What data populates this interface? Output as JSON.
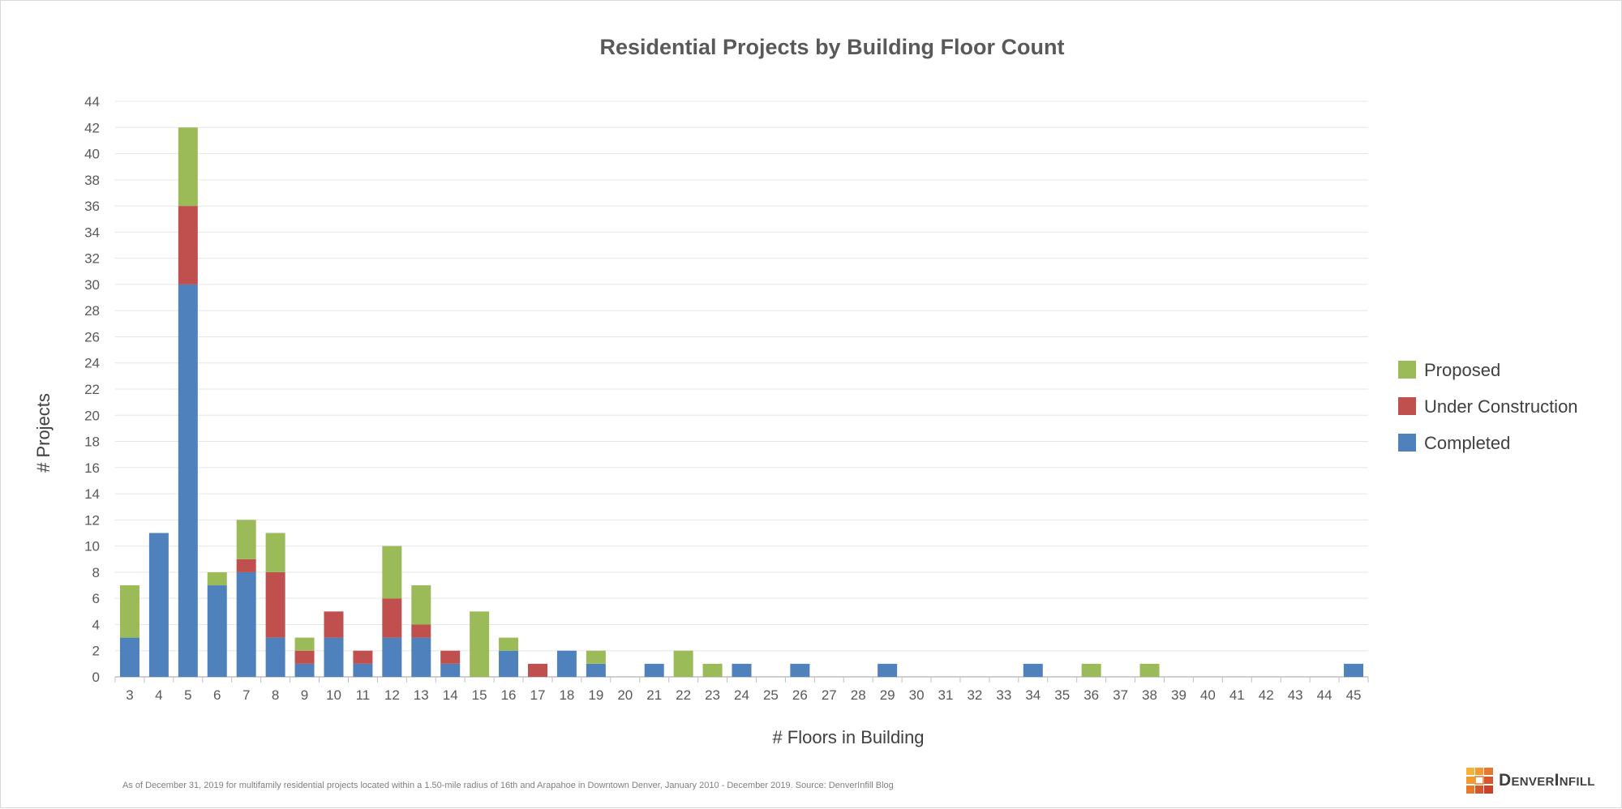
{
  "footnote": "As of December 31, 2019 for multifamily residential projects located within a 1.50-mile radius of 16th and Arapahoe in Downtown Denver, January 2010 - December 2019. Source: DenverInfill Blog",
  "brand": {
    "name": "DenverInfill",
    "logo_icon": "denverinfill-logo-icon"
  },
  "chart_data": {
    "type": "bar",
    "stacked": true,
    "title": "Residential Projects by Building Floor Count",
    "xlabel": "# Floors in Building",
    "ylabel": "# Projects",
    "ylim": [
      0,
      44
    ],
    "yticks": [
      0,
      2,
      4,
      6,
      8,
      10,
      12,
      14,
      16,
      18,
      20,
      22,
      24,
      26,
      28,
      30,
      32,
      34,
      36,
      38,
      40,
      42,
      44
    ],
    "grid": true,
    "legend_position": "right",
    "categories": [
      "3",
      "4",
      "5",
      "6",
      "7",
      "8",
      "9",
      "10",
      "11",
      "12",
      "13",
      "14",
      "15",
      "16",
      "17",
      "18",
      "19",
      "20",
      "21",
      "22",
      "23",
      "24",
      "25",
      "26",
      "27",
      "28",
      "29",
      "30",
      "31",
      "32",
      "33",
      "34",
      "35",
      "36",
      "37",
      "38",
      "39",
      "40",
      "41",
      "42",
      "43",
      "44",
      "45"
    ],
    "series": [
      {
        "name": "Completed",
        "color": "#4f81bd",
        "values": [
          3,
          11,
          30,
          7,
          8,
          3,
          1,
          3,
          1,
          3,
          3,
          1,
          0,
          2,
          0,
          2,
          1,
          0,
          1,
          0,
          0,
          1,
          0,
          1,
          0,
          0,
          1,
          0,
          0,
          0,
          0,
          1,
          0,
          0,
          0,
          0,
          0,
          0,
          0,
          0,
          0,
          0,
          1
        ]
      },
      {
        "name": "Under Construction",
        "color": "#c0504d",
        "values": [
          0,
          0,
          6,
          0,
          1,
          5,
          1,
          2,
          1,
          3,
          1,
          1,
          0,
          0,
          1,
          0,
          0,
          0,
          0,
          0,
          0,
          0,
          0,
          0,
          0,
          0,
          0,
          0,
          0,
          0,
          0,
          0,
          0,
          0,
          0,
          0,
          0,
          0,
          0,
          0,
          0,
          0,
          0
        ]
      },
      {
        "name": "Proposed",
        "color": "#9bbb59",
        "values": [
          4,
          0,
          6,
          1,
          3,
          3,
          1,
          0,
          0,
          4,
          3,
          0,
          5,
          1,
          0,
          0,
          1,
          0,
          0,
          2,
          1,
          0,
          0,
          0,
          0,
          0,
          0,
          0,
          0,
          0,
          0,
          0,
          0,
          1,
          0,
          1,
          0,
          0,
          0,
          0,
          0,
          0,
          0
        ]
      }
    ]
  }
}
